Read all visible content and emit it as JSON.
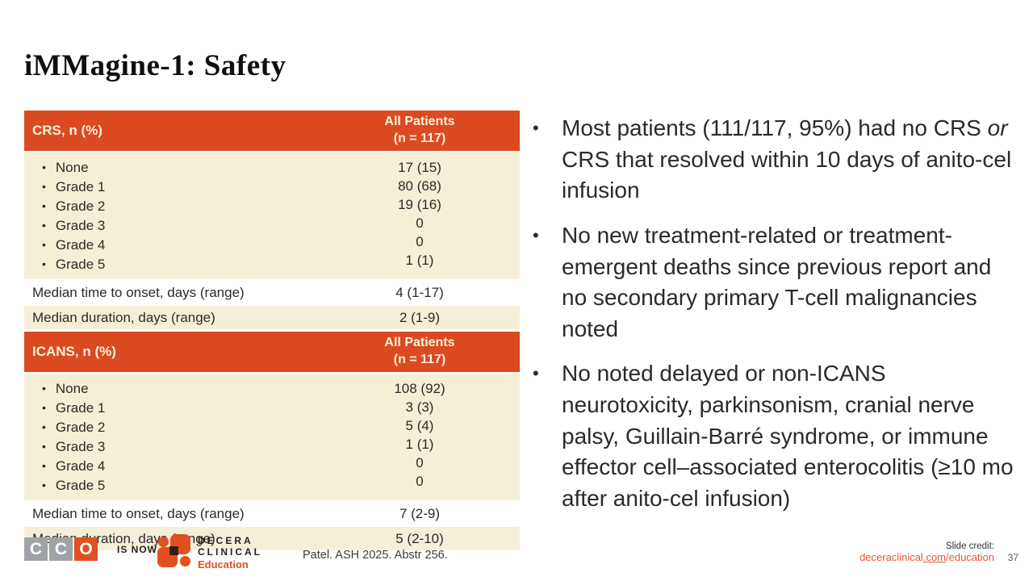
{
  "title": "iMMagine-1: Safety",
  "colors": {
    "accent_orange": "#db4a21",
    "cream": "#f6efd8",
    "text_dark": "#2b2a29",
    "logo_gray": "#9fa3a7",
    "link_orange": "#e2592e"
  },
  "table": {
    "sections": [
      {
        "header": {
          "label": "CRS, n (%)",
          "col2_line1": "All Patients",
          "col2_line2": "(n = 117)"
        },
        "grades": [
          {
            "label": "None",
            "value": "17 (15)"
          },
          {
            "label": "Grade 1",
            "value": "80 (68)"
          },
          {
            "label": "Grade 2",
            "value": "19 (16)"
          },
          {
            "label": "Grade 3",
            "value": "0"
          },
          {
            "label": "Grade 4",
            "value": "0"
          },
          {
            "label": "Grade 5",
            "value": "1 (1)"
          }
        ],
        "median_rows": [
          {
            "label": "Median time to onset, days (range)",
            "value": "4 (1-17)"
          },
          {
            "label": "Median duration, days (range)",
            "value": "2 (1-9)"
          }
        ]
      },
      {
        "header": {
          "label": "ICANS, n (%)",
          "col2_line1": "All Patients",
          "col2_line2": "(n = 117)"
        },
        "grades": [
          {
            "label": "None",
            "value": "108 (92)"
          },
          {
            "label": "Grade 1",
            "value": "3 (3)"
          },
          {
            "label": "Grade 2",
            "value": "5 (4)"
          },
          {
            "label": "Grade 3",
            "value": "1 (1)"
          },
          {
            "label": "Grade 4",
            "value": "0"
          },
          {
            "label": "Grade 5",
            "value": "0"
          }
        ],
        "median_rows": [
          {
            "label": "Median time to onset, days (range)",
            "value": "7 (2-9)"
          },
          {
            "label": "Median duration, days (range)",
            "value": "5 (2-10)"
          }
        ]
      }
    ]
  },
  "bullets": {
    "b1": {
      "before": "Most patients (111/117, 95%) had no CRS ",
      "italic": "or",
      "after": " CRS that resolved within 10 days of anito-cel infusion"
    },
    "b2": "No new treatment-related or treatment-emergent deaths since previous report and no secondary primary T-cell malignancies noted",
    "b3": "No noted delayed or non-ICANS neurotoxicity, parkinsonism, cranial nerve palsy, Guillain-Barré syndrome, or immune effector cell–associated enterocolitis (≥10 mo after anito-cel infusion)"
  },
  "footer": {
    "cco_letters": [
      "C",
      "C",
      "O"
    ],
    "is_now": "IS NOW",
    "decera_line1": "DECERA",
    "decera_line2": "CLINICAL",
    "decera_line3": "Education",
    "citation": "Patel. ASH 2025. Abstr 256.",
    "slide_credit_label": "Slide credit:",
    "link_pre": "deceraclinical",
    "link_mid": ".com",
    "link_post": "/education",
    "page_number": "37"
  }
}
